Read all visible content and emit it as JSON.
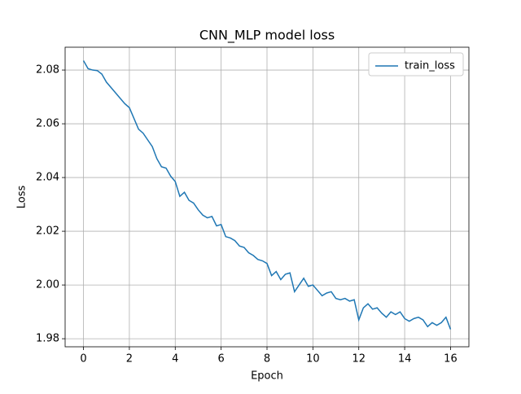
{
  "chart_data": {
    "type": "line",
    "title": "CNN_MLP model loss",
    "x_label": "Epoch",
    "y_label": "Loss",
    "x": [
      0,
      0.2,
      0.4,
      0.6,
      0.8,
      1,
      1.2,
      1.4,
      1.6,
      1.8,
      2,
      2.2,
      2.4,
      2.6,
      2.8,
      3,
      3.2,
      3.4,
      3.6,
      3.8,
      4,
      4.2,
      4.4,
      4.6,
      4.8,
      5,
      5.2,
      5.4,
      5.6,
      5.8,
      6,
      6.2,
      6.4,
      6.6,
      6.8,
      7,
      7.2,
      7.4,
      7.6,
      7.8,
      8,
      8.2,
      8.4,
      8.6,
      8.8,
      9,
      9.2,
      9.4,
      9.6,
      9.8,
      10,
      10.2,
      10.4,
      10.6,
      10.8,
      11,
      11.2,
      11.4,
      11.6,
      11.8,
      12,
      12.2,
      12.4,
      12.6,
      12.8,
      13,
      13.2,
      13.4,
      13.6,
      13.8,
      14,
      14.2,
      14.4,
      14.6,
      14.8,
      15,
      15.2,
      15.4,
      15.6,
      15.8,
      16
    ],
    "series": [
      {
        "name": "train_loss",
        "color": "#1f77b4",
        "values": [
          2.0835,
          2.0805,
          2.08,
          2.0798,
          2.0785,
          2.0755,
          2.0735,
          2.0715,
          2.0695,
          2.0675,
          2.066,
          2.062,
          2.058,
          2.0565,
          2.054,
          2.0515,
          2.047,
          2.044,
          2.0435,
          2.0405,
          2.0385,
          2.033,
          2.0345,
          2.0315,
          2.0305,
          2.028,
          2.026,
          2.025,
          2.0255,
          2.022,
          2.0225,
          2.018,
          2.0175,
          2.0165,
          2.0145,
          2.014,
          2.012,
          2.011,
          2.0095,
          2.009,
          2.008,
          2.0035,
          2.005,
          2.002,
          2.004,
          2.0045,
          1.9975,
          2.0,
          2.0025,
          1.9995,
          2.0,
          1.998,
          1.996,
          1.997,
          1.9975,
          1.995,
          1.9945,
          1.995,
          1.994,
          1.9945,
          1.987,
          1.9915,
          1.993,
          1.991,
          1.9915,
          1.9895,
          1.988,
          1.99,
          1.989,
          1.99,
          1.9875,
          1.9865,
          1.9875,
          1.988,
          1.987,
          1.9845,
          1.986,
          1.985,
          1.986,
          1.988,
          1.9835
        ]
      }
    ],
    "xlim": [
      -0.8,
      16.8
    ],
    "ylim": [
      1.977,
      2.0885
    ],
    "xticks": [
      0,
      2,
      4,
      6,
      8,
      10,
      12,
      14,
      16
    ],
    "yticks": [
      1.98,
      {
        "value": 2,
        "label": "2.00"
      },
      2.02,
      2.04,
      2.06,
      2.08
    ],
    "grid": true,
    "legend": "upper right"
  }
}
